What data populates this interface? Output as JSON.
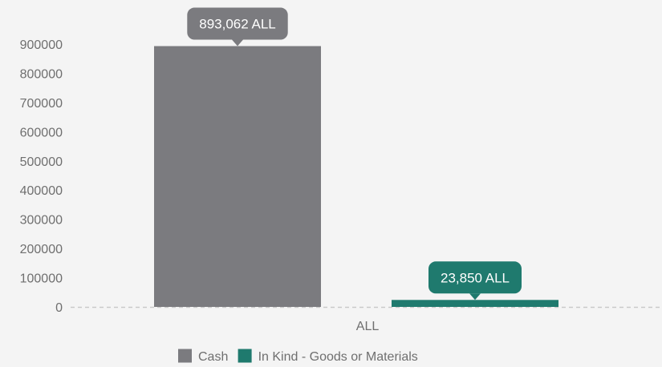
{
  "chart_data": {
    "type": "bar",
    "title": "",
    "xlabel": "",
    "ylabel": "",
    "categories": [
      "ALL"
    ],
    "series": [
      {
        "name": "Cash",
        "values": [
          893062
        ],
        "color": "#7b7b7f",
        "label": "893,062 ALL"
      },
      {
        "name": "In Kind - Goods or Materials",
        "values": [
          23850
        ],
        "color": "#1f7a6e",
        "label": "23,850 ALL"
      }
    ],
    "ylim": [
      0,
      900000
    ],
    "yticks": [
      "0",
      "100000",
      "200000",
      "300000",
      "400000",
      "500000",
      "600000",
      "700000",
      "800000",
      "900000"
    ],
    "ytick_values": [
      0,
      100000,
      200000,
      300000,
      400000,
      500000,
      600000,
      700000,
      800000,
      900000
    ],
    "grid": false,
    "legend_position": "bottom-center",
    "baseline_style": "dashed"
  }
}
